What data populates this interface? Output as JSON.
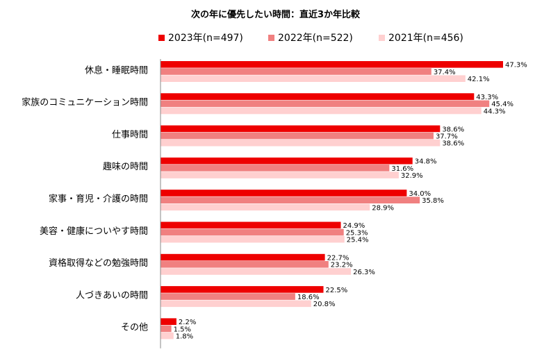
{
  "chart_data": {
    "type": "bar",
    "orientation": "horizontal",
    "title": "次の年に優先したい時間：直近3か年比較",
    "categories": [
      "休息・睡眠時間",
      "家族のコミュニケーション時間",
      "仕事時間",
      "趣味の時間",
      "家事・育児・介護の時間",
      "美容・健康についやす時間",
      "資格取得などの勉強時間",
      "人づきあいの時間",
      "その他"
    ],
    "series": [
      {
        "name": "2023年(n=497)",
        "color": "#ee0000",
        "values": [
          47.3,
          43.3,
          38.6,
          34.8,
          34.0,
          24.9,
          22.7,
          22.5,
          2.2
        ],
        "labels": [
          "47.3%",
          "43.3%",
          "38.6%",
          "34.8%",
          "34.0%",
          "24.9%",
          "22.7%",
          "22.5%",
          "2.2%"
        ]
      },
      {
        "name": "2022年(n=522)",
        "color": "#f08080",
        "values": [
          37.4,
          45.4,
          37.7,
          31.6,
          35.8,
          25.3,
          23.2,
          18.6,
          1.5
        ],
        "labels": [
          "37.4%",
          "45.4%",
          "37.7%",
          "31.6%",
          "35.8%",
          "25.3%",
          "23.2%",
          "18.6%",
          "1.5%"
        ]
      },
      {
        "name": "2021年(n=456)",
        "color": "#ffd0d0",
        "values": [
          42.1,
          44.3,
          38.6,
          32.9,
          28.9,
          25.4,
          26.3,
          20.8,
          1.8
        ],
        "labels": [
          "42.1%",
          "44.3%",
          "38.6%",
          "32.9%",
          "28.9%",
          "25.4%",
          "26.3%",
          "20.8%",
          "1.8%"
        ]
      }
    ],
    "xlim": [
      0,
      50
    ],
    "legend_position": "top",
    "grid": false
  }
}
